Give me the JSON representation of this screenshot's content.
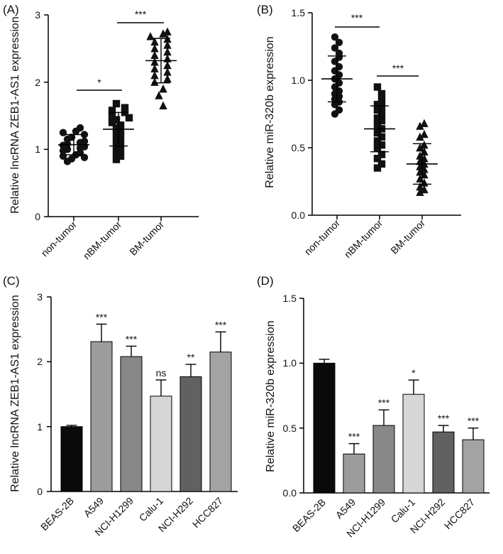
{
  "chart_data": [
    {
      "panel": "(A)",
      "type": "scatter",
      "ylabel": "Relative lncRNA ZEB1-AS1 expression",
      "ylim": [
        0,
        3
      ],
      "yticks": [
        "0",
        "1",
        "2",
        "3"
      ],
      "categories": [
        "non-tumor",
        "nBM-tumor",
        "BM-tumor"
      ],
      "markers": [
        "circle",
        "square",
        "triangle"
      ],
      "series": [
        {
          "name": "non-tumor",
          "mean": 1.07,
          "sd": 0.15,
          "values": [
            1.32,
            1.27,
            1.25,
            1.22,
            1.18,
            1.15,
            1.12,
            1.1,
            1.08,
            1.06,
            1.04,
            1.02,
            1.0,
            0.98,
            0.95,
            0.92,
            0.9,
            0.88,
            0.86,
            0.82
          ]
        },
        {
          "name": "nBM-tumor",
          "mean": 1.3,
          "sd": 0.25,
          "values": [
            1.68,
            1.62,
            1.58,
            1.55,
            1.5,
            1.47,
            1.44,
            1.4,
            1.36,
            1.32,
            1.28,
            1.24,
            1.2,
            1.15,
            1.1,
            1.05,
            1.0,
            0.95,
            0.9,
            0.85
          ]
        },
        {
          "name": "BM-tumor",
          "mean": 2.32,
          "sd": 0.33,
          "values": [
            2.75,
            2.72,
            2.68,
            2.64,
            2.6,
            2.55,
            2.5,
            2.45,
            2.4,
            2.35,
            2.3,
            2.25,
            2.2,
            2.15,
            2.1,
            2.05,
            2.0,
            1.9,
            1.8,
            1.65
          ]
        }
      ],
      "significance": [
        {
          "from": 0,
          "to": 1,
          "label": "*",
          "level": 1.88
        },
        {
          "from": 1,
          "to": 2,
          "label": "***",
          "level": 2.88
        }
      ]
    },
    {
      "panel": "(B)",
      "type": "scatter",
      "ylabel": "Relative miR-320b expression",
      "ylim": [
        0,
        1.5
      ],
      "yticks": [
        "0.0",
        "0.5",
        "1.0",
        "1.5"
      ],
      "categories": [
        "non-tumor",
        "nBM-tumor",
        "BM-tumor"
      ],
      "markers": [
        "circle",
        "square",
        "triangle"
      ],
      "series": [
        {
          "name": "non-tumor",
          "mean": 1.01,
          "sd": 0.17,
          "values": [
            1.32,
            1.28,
            1.24,
            1.2,
            1.17,
            1.14,
            1.1,
            1.07,
            1.04,
            1.01,
            0.98,
            0.95,
            0.92,
            0.9,
            0.88,
            0.86,
            0.84,
            0.82,
            0.78,
            0.75
          ]
        },
        {
          "name": "nBM-tumor",
          "mean": 0.64,
          "sd": 0.17,
          "values": [
            0.95,
            0.9,
            0.85,
            0.82,
            0.8,
            0.78,
            0.75,
            0.72,
            0.7,
            0.67,
            0.64,
            0.61,
            0.58,
            0.55,
            0.52,
            0.5,
            0.45,
            0.42,
            0.38,
            0.35
          ]
        },
        {
          "name": "BM-tumor",
          "mean": 0.38,
          "sd": 0.15,
          "values": [
            0.68,
            0.66,
            0.6,
            0.58,
            0.52,
            0.5,
            0.47,
            0.44,
            0.42,
            0.4,
            0.38,
            0.36,
            0.34,
            0.32,
            0.3,
            0.27,
            0.24,
            0.21,
            0.19,
            0.17
          ]
        }
      ],
      "significance": [
        {
          "from": 0,
          "to": 1,
          "label": "***",
          "level": 1.39
        },
        {
          "from": 1,
          "to": 2,
          "label": "***",
          "level": 1.02
        }
      ]
    },
    {
      "panel": "(C)",
      "type": "bar",
      "ylabel": "Relative lncRNA ZEB1-AS1 expression",
      "ylim": [
        0,
        3
      ],
      "yticks": [
        "0",
        "1",
        "2",
        "3"
      ],
      "categories": [
        "BEAS-2B",
        "A549",
        "NCI-H1299",
        "Calu-1",
        "NCI-H292",
        "HCC827"
      ],
      "values": [
        1.0,
        2.31,
        2.08,
        1.47,
        1.77,
        2.15
      ],
      "errors": [
        0.02,
        0.27,
        0.16,
        0.25,
        0.19,
        0.31
      ],
      "colors": [
        "#0a0a0a",
        "#9c9c9c",
        "#888888",
        "#d6d6d6",
        "#616161",
        "#a3a3a3"
      ],
      "significance_labels": [
        "",
        "***",
        "***",
        "ns",
        "**",
        "***"
      ]
    },
    {
      "panel": "(D)",
      "type": "bar",
      "ylabel": "Relative miR-320b expression",
      "ylim": [
        0,
        1.5
      ],
      "yticks": [
        "0.0",
        "0.5",
        "1.0",
        "1.5"
      ],
      "categories": [
        "BEAS-2B",
        "A549",
        "NCI-H1299",
        "Calu-1",
        "NCI-H292",
        "HCC827"
      ],
      "values": [
        1.0,
        0.3,
        0.52,
        0.76,
        0.47,
        0.41
      ],
      "errors": [
        0.03,
        0.08,
        0.12,
        0.11,
        0.05,
        0.09
      ],
      "colors": [
        "#0a0a0a",
        "#9c9c9c",
        "#888888",
        "#d6d6d6",
        "#616161",
        "#a3a3a3"
      ],
      "significance_labels": [
        "",
        "***",
        "***",
        "*",
        "***",
        "***"
      ]
    }
  ]
}
